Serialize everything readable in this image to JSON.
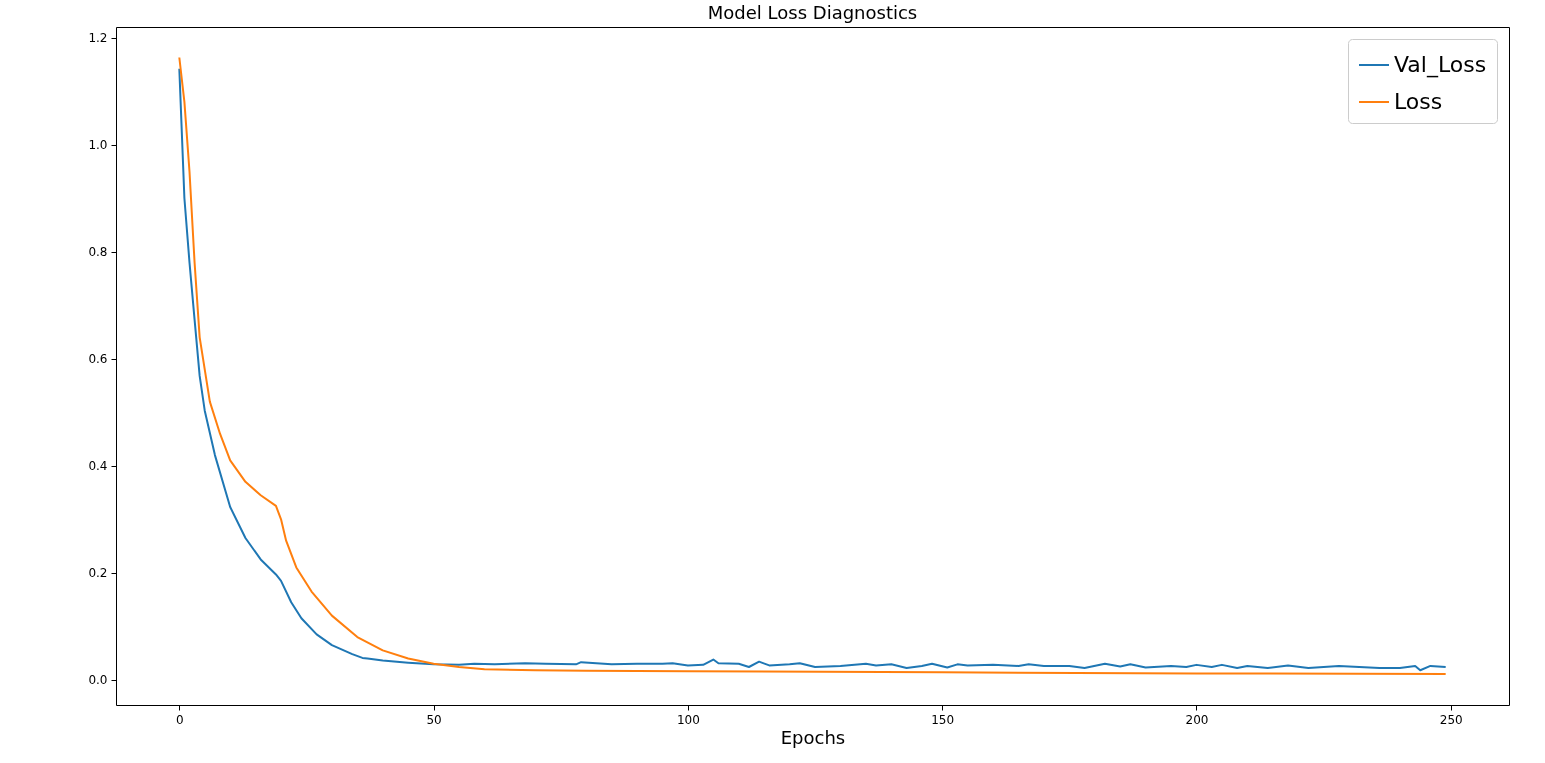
{
  "chart_data": {
    "type": "line",
    "title": "Model Loss Diagnostics",
    "xlabel": "Epochs",
    "xlim": [
      -12.45,
      261.45
    ],
    "xticks": [
      0,
      50,
      100,
      150,
      200,
      250
    ],
    "ylim": [
      -0.047,
      1.22
    ],
    "yticks": [
      {
        "value": 0,
        "label": "0.0"
      },
      {
        "value": 0.2,
        "label": "0.2"
      },
      {
        "value": 0.4,
        "label": "0.4"
      },
      {
        "value": 0.6,
        "label": "0.6"
      },
      {
        "value": 0.8,
        "label": "0.8"
      },
      {
        "value": 1,
        "label": "1.0"
      },
      {
        "value": 1.2,
        "label": "1.2"
      }
    ],
    "grid": false,
    "legend": "top right",
    "marker": "none",
    "line_style": "solid",
    "series": [
      {
        "name": "Val_Loss",
        "color": "#1f77b4",
        "x": [
          0,
          1,
          2,
          3,
          4,
          5,
          7,
          10,
          13,
          16,
          19,
          20,
          22,
          24,
          27,
          30,
          34,
          36,
          37,
          40,
          45,
          50,
          55,
          58,
          62,
          68,
          72,
          78,
          79,
          85,
          90,
          95,
          97,
          100,
          103,
          105,
          106,
          110,
          112,
          114,
          116,
          120,
          122,
          125,
          130,
          135,
          137,
          140,
          143,
          146,
          148,
          151,
          153,
          155,
          160,
          165,
          167,
          170,
          175,
          178,
          182,
          185,
          187,
          190,
          195,
          198,
          200,
          203,
          205,
          208,
          210,
          214,
          218,
          222,
          228,
          232,
          236,
          240,
          243,
          244,
          246,
          249
        ],
        "values": [
          1.142,
          0.9,
          0.78,
          0.673,
          0.568,
          0.503,
          0.42,
          0.323,
          0.265,
          0.225,
          0.197,
          0.185,
          0.145,
          0.115,
          0.085,
          0.065,
          0.048,
          0.041,
          0.04,
          0.036,
          0.032,
          0.029,
          0.028,
          0.03,
          0.029,
          0.031,
          0.03,
          0.029,
          0.033,
          0.029,
          0.03,
          0.03,
          0.031,
          0.027,
          0.028,
          0.038,
          0.031,
          0.03,
          0.024,
          0.034,
          0.027,
          0.029,
          0.031,
          0.024,
          0.026,
          0.03,
          0.027,
          0.029,
          0.022,
          0.026,
          0.03,
          0.023,
          0.029,
          0.027,
          0.028,
          0.026,
          0.029,
          0.026,
          0.026,
          0.022,
          0.03,
          0.025,
          0.029,
          0.023,
          0.026,
          0.024,
          0.028,
          0.024,
          0.028,
          0.022,
          0.026,
          0.022,
          0.027,
          0.022,
          0.026,
          0.024,
          0.022,
          0.022,
          0.026,
          0.018,
          0.026,
          0.024
        ]
      },
      {
        "name": "Loss",
        "color": "#ff7f0e",
        "x": [
          0,
          1,
          2,
          3,
          4,
          6,
          8,
          10,
          13,
          16,
          19,
          20,
          21,
          23,
          26,
          30,
          35,
          40,
          45,
          50,
          55,
          60,
          70,
          80,
          100,
          150,
          200,
          249
        ],
        "values": [
          1.163,
          1.08,
          0.95,
          0.78,
          0.64,
          0.52,
          0.46,
          0.41,
          0.37,
          0.345,
          0.325,
          0.3,
          0.26,
          0.21,
          0.165,
          0.12,
          0.08,
          0.055,
          0.04,
          0.03,
          0.024,
          0.02,
          0.018,
          0.017,
          0.016,
          0.014,
          0.012,
          0.011
        ]
      }
    ]
  }
}
